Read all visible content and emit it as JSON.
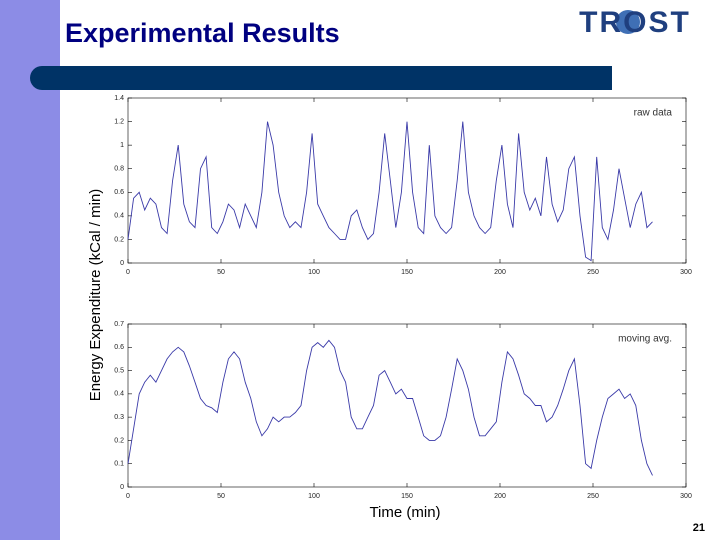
{
  "slide": {
    "title": "Experimental Results",
    "logo": "TROST",
    "y_label": "Energy Expenditure (kCal / min)",
    "x_label": "Time (min)",
    "page_number": "21"
  },
  "chart_data": [
    {
      "type": "line",
      "annotation": "raw data",
      "color": "#3a3aa8",
      "xlim": [
        0,
        300
      ],
      "xticks": [
        0,
        50,
        100,
        150,
        200,
        250,
        300
      ],
      "ylim": [
        0,
        1.4
      ],
      "yticks": [
        0,
        0.2,
        0.4,
        0.6,
        0.8,
        1,
        1.2,
        1.4
      ],
      "x": [
        0,
        3,
        6,
        9,
        12,
        15,
        18,
        21,
        24,
        27,
        30,
        33,
        36,
        39,
        42,
        45,
        48,
        51,
        54,
        57,
        60,
        63,
        66,
        69,
        72,
        75,
        78,
        81,
        84,
        87,
        90,
        93,
        96,
        99,
        102,
        105,
        108,
        111,
        114,
        117,
        120,
        123,
        126,
        129,
        132,
        135,
        138,
        141,
        144,
        147,
        150,
        153,
        156,
        159,
        162,
        165,
        168,
        171,
        174,
        177,
        180,
        183,
        186,
        189,
        192,
        195,
        198,
        201,
        204,
        207,
        210,
        213,
        216,
        219,
        222,
        225,
        228,
        231,
        234,
        237,
        240,
        243,
        246,
        249,
        252,
        255,
        258,
        261,
        264,
        267,
        270,
        273,
        276,
        279,
        282
      ],
      "values": [
        0.2,
        0.55,
        0.6,
        0.45,
        0.55,
        0.5,
        0.3,
        0.25,
        0.7,
        1.0,
        0.5,
        0.35,
        0.3,
        0.8,
        0.9,
        0.3,
        0.25,
        0.35,
        0.5,
        0.45,
        0.3,
        0.5,
        0.4,
        0.3,
        0.6,
        1.2,
        1.0,
        0.6,
        0.4,
        0.3,
        0.35,
        0.3,
        0.6,
        1.1,
        0.5,
        0.4,
        0.3,
        0.25,
        0.2,
        0.2,
        0.4,
        0.45,
        0.3,
        0.2,
        0.25,
        0.6,
        1.1,
        0.7,
        0.3,
        0.6,
        1.2,
        0.6,
        0.3,
        0.25,
        1.0,
        0.4,
        0.3,
        0.25,
        0.3,
        0.7,
        1.2,
        0.6,
        0.4,
        0.3,
        0.25,
        0.3,
        0.7,
        1.0,
        0.5,
        0.3,
        1.1,
        0.6,
        0.45,
        0.55,
        0.4,
        0.9,
        0.5,
        0.35,
        0.45,
        0.8,
        0.9,
        0.4,
        0.05,
        0.02,
        0.9,
        0.3,
        0.2,
        0.45,
        0.8,
        0.55,
        0.3,
        0.5,
        0.6,
        0.3,
        0.35
      ]
    },
    {
      "type": "line",
      "annotation": "moving avg.",
      "color": "#3a3aa8",
      "xlim": [
        0,
        300
      ],
      "xticks": [
        0,
        50,
        100,
        150,
        200,
        250,
        300
      ],
      "ylim": [
        0,
        0.7
      ],
      "yticks": [
        0,
        0.1,
        0.2,
        0.3,
        0.4,
        0.5,
        0.6,
        0.7
      ],
      "x": [
        0,
        3,
        6,
        9,
        12,
        15,
        18,
        21,
        24,
        27,
        30,
        33,
        36,
        39,
        42,
        45,
        48,
        51,
        54,
        57,
        60,
        63,
        66,
        69,
        72,
        75,
        78,
        81,
        84,
        87,
        90,
        93,
        96,
        99,
        102,
        105,
        108,
        111,
        114,
        117,
        120,
        123,
        126,
        129,
        132,
        135,
        138,
        141,
        144,
        147,
        150,
        153,
        156,
        159,
        162,
        165,
        168,
        171,
        174,
        177,
        180,
        183,
        186,
        189,
        192,
        195,
        198,
        201,
        204,
        207,
        210,
        213,
        216,
        219,
        222,
        225,
        228,
        231,
        234,
        237,
        240,
        243,
        246,
        249,
        252,
        255,
        258,
        261,
        264,
        267,
        270,
        273,
        276,
        279,
        282
      ],
      "values": [
        0.1,
        0.25,
        0.4,
        0.45,
        0.48,
        0.45,
        0.5,
        0.55,
        0.58,
        0.6,
        0.58,
        0.52,
        0.45,
        0.38,
        0.35,
        0.34,
        0.32,
        0.45,
        0.55,
        0.58,
        0.55,
        0.45,
        0.38,
        0.28,
        0.22,
        0.25,
        0.3,
        0.28,
        0.3,
        0.3,
        0.32,
        0.35,
        0.5,
        0.6,
        0.62,
        0.6,
        0.63,
        0.6,
        0.5,
        0.45,
        0.3,
        0.25,
        0.25,
        0.3,
        0.35,
        0.48,
        0.5,
        0.45,
        0.4,
        0.42,
        0.38,
        0.38,
        0.3,
        0.22,
        0.2,
        0.2,
        0.22,
        0.3,
        0.42,
        0.55,
        0.5,
        0.42,
        0.3,
        0.22,
        0.22,
        0.25,
        0.28,
        0.45,
        0.58,
        0.55,
        0.48,
        0.4,
        0.38,
        0.35,
        0.35,
        0.28,
        0.3,
        0.35,
        0.42,
        0.5,
        0.55,
        0.35,
        0.1,
        0.08,
        0.2,
        0.3,
        0.38,
        0.4,
        0.42,
        0.38,
        0.4,
        0.35,
        0.2,
        0.1,
        0.05
      ]
    }
  ]
}
